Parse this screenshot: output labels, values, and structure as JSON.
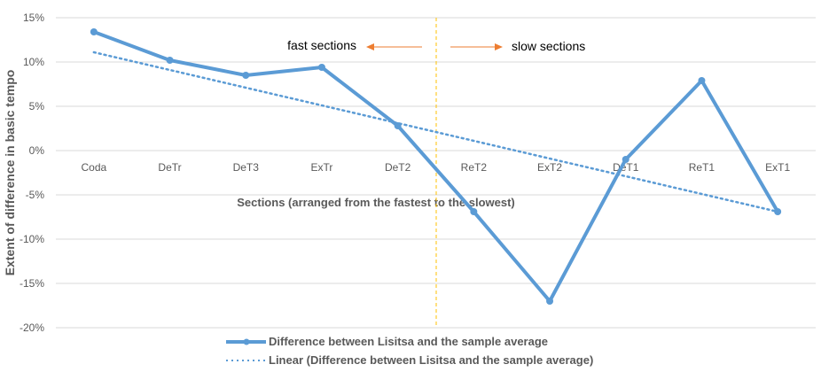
{
  "chart_data": {
    "type": "line",
    "categories": [
      "Coda",
      "DeTr",
      "DeT3",
      "ExTr",
      "DeT2",
      "ReT2",
      "ExT2",
      "DeT1",
      "ReT1",
      "ExT1"
    ],
    "series": [
      {
        "name": "Difference between Lisitsa and the sample average",
        "values": [
          13.4,
          10.2,
          8.5,
          9.4,
          2.8,
          -6.9,
          -17.0,
          -1.0,
          7.9,
          -6.9
        ],
        "color": "#5B9BD5"
      }
    ],
    "trendline": {
      "name": "Linear (Difference between Lisitsa and the sample average)",
      "start": 11.1,
      "end": -6.9,
      "color": "#5B9BD5"
    },
    "xlabel": "Sections (arranged from the fastest to the slowest)",
    "ylabel": "Extent of difference in basic tempo",
    "ylim": [
      -20,
      15
    ],
    "yticks": [
      15,
      10,
      5,
      0,
      -5,
      -10,
      -15,
      -20
    ],
    "ytick_labels": [
      "15%",
      "10%",
      "5%",
      "0%",
      "-5%",
      "-10%",
      "-15%",
      "-20%"
    ],
    "grid": true,
    "legend_position": "bottom",
    "annotations": {
      "fast": "fast sections",
      "slow": "slow sections",
      "arrow_color": "#ED7D31",
      "divider_color": "#FFC000"
    }
  }
}
